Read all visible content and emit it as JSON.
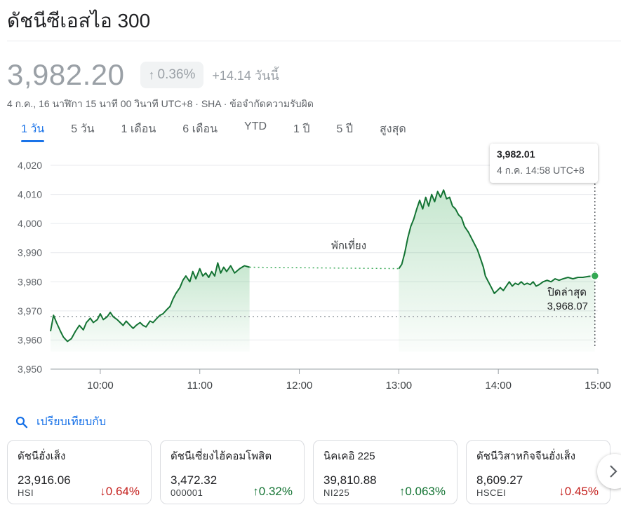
{
  "header": {
    "title": "ดัชนีซีเอสไอ 300"
  },
  "quote": {
    "price": "3,982.20",
    "pct_change": "0.36%",
    "abs_change": "+14.14 วันนี้",
    "meta": "4 ก.ค., 16 นาฬิกา 15 นาที 00 วินาที UTC+8 · SHA · ข้อจำกัดความรับผิด"
  },
  "tabs": [
    {
      "label": "1 วัน",
      "active": true
    },
    {
      "label": "5 วัน"
    },
    {
      "label": "1 เดือน"
    },
    {
      "label": "6 เดือน"
    },
    {
      "label": "YTD"
    },
    {
      "label": "1 ปี"
    },
    {
      "label": "5 ปี"
    },
    {
      "label": "สูงสุด"
    }
  ],
  "tooltip": {
    "value": "3,982.01",
    "time": "4 ก.ค. 14:58 UTC+8"
  },
  "chart_data": {
    "type": "line",
    "x_ticks": [
      "10:00",
      "11:00",
      "12:00",
      "13:00",
      "14:00",
      "15:00"
    ],
    "y_ticks": [
      "4,020",
      "4,010",
      "4,000",
      "3,990",
      "3,980",
      "3,970",
      "3,960",
      "3,950"
    ],
    "ylim": [
      3950,
      4020
    ],
    "xlim_hours": [
      9.5,
      15.0
    ],
    "previous_close": 3968.07,
    "previous_close_label": "ปิดล่าสุด",
    "previous_close_text": "3,968.07",
    "lunch_label": "พักเที่ยง",
    "lunch_break": [
      11.5,
      13.0
    ],
    "colors": {
      "line": "#137333",
      "fill": "#34a853"
    },
    "morning": [
      [
        9.5,
        3963
      ],
      [
        9.53,
        3968.5
      ],
      [
        9.56,
        3966
      ],
      [
        9.6,
        3963
      ],
      [
        9.63,
        3961
      ],
      [
        9.67,
        3959.5
      ],
      [
        9.71,
        3960.5
      ],
      [
        9.75,
        3963
      ],
      [
        9.79,
        3965
      ],
      [
        9.83,
        3963.5
      ],
      [
        9.86,
        3966
      ],
      [
        9.9,
        3967.5
      ],
      [
        9.93,
        3966
      ],
      [
        9.97,
        3967
      ],
      [
        10.0,
        3969
      ],
      [
        10.03,
        3967
      ],
      [
        10.07,
        3968
      ],
      [
        10.1,
        3969.5
      ],
      [
        10.13,
        3968
      ],
      [
        10.17,
        3967
      ],
      [
        10.2,
        3966
      ],
      [
        10.23,
        3965
      ],
      [
        10.26,
        3966.5
      ],
      [
        10.3,
        3965
      ],
      [
        10.33,
        3964
      ],
      [
        10.36,
        3965
      ],
      [
        10.4,
        3966
      ],
      [
        10.43,
        3965
      ],
      [
        10.46,
        3964.5
      ],
      [
        10.5,
        3966.5
      ],
      [
        10.53,
        3966
      ],
      [
        10.57,
        3967.5
      ],
      [
        10.6,
        3968.5
      ],
      [
        10.63,
        3969
      ],
      [
        10.67,
        3970.5
      ],
      [
        10.7,
        3971.5
      ],
      [
        10.73,
        3974
      ],
      [
        10.76,
        3976
      ],
      [
        10.8,
        3978
      ],
      [
        10.83,
        3980.5
      ],
      [
        10.86,
        3982
      ],
      [
        10.9,
        3980
      ],
      [
        10.93,
        3983.5
      ],
      [
        10.96,
        3981
      ],
      [
        11.0,
        3984.5
      ],
      [
        11.03,
        3982
      ],
      [
        11.06,
        3983
      ],
      [
        11.09,
        3981.5
      ],
      [
        11.12,
        3983.5
      ],
      [
        11.15,
        3982
      ],
      [
        11.18,
        3986.5
      ],
      [
        11.21,
        3983
      ],
      [
        11.24,
        3985
      ],
      [
        11.27,
        3983.5
      ],
      [
        11.31,
        3985.5
      ],
      [
        11.35,
        3983
      ],
      [
        11.4,
        3984.5
      ],
      [
        11.45,
        3985.5
      ],
      [
        11.5,
        3985
      ]
    ],
    "afternoon": [
      [
        13.0,
        3984.5
      ],
      [
        13.03,
        3986
      ],
      [
        13.06,
        3990
      ],
      [
        13.09,
        3995
      ],
      [
        13.12,
        3999
      ],
      [
        13.15,
        4001.5
      ],
      [
        13.18,
        4005
      ],
      [
        13.21,
        4008
      ],
      [
        13.24,
        4005
      ],
      [
        13.27,
        4009
      ],
      [
        13.3,
        4006
      ],
      [
        13.33,
        4010
      ],
      [
        13.36,
        4007.5
      ],
      [
        13.39,
        4011
      ],
      [
        13.42,
        4009
      ],
      [
        13.45,
        4011.5
      ],
      [
        13.48,
        4008.5
      ],
      [
        13.51,
        4009
      ],
      [
        13.54,
        4006
      ],
      [
        13.57,
        4005
      ],
      [
        13.6,
        4003
      ],
      [
        13.63,
        4002
      ],
      [
        13.66,
        3999
      ],
      [
        13.7,
        3997
      ],
      [
        13.73,
        3995
      ],
      [
        13.76,
        3993
      ],
      [
        13.79,
        3991
      ],
      [
        13.82,
        3988
      ],
      [
        13.85,
        3985
      ],
      [
        13.87,
        3982
      ],
      [
        13.9,
        3980
      ],
      [
        13.93,
        3978
      ],
      [
        13.96,
        3976
      ],
      [
        13.99,
        3977
      ],
      [
        14.02,
        3978
      ],
      [
        14.05,
        3977
      ],
      [
        14.08,
        3978.5
      ],
      [
        14.11,
        3980
      ],
      [
        14.14,
        3978.5
      ],
      [
        14.17,
        3979.5
      ],
      [
        14.2,
        3979
      ],
      [
        14.23,
        3980
      ],
      [
        14.26,
        3979
      ],
      [
        14.29,
        3979.5
      ],
      [
        14.32,
        3979
      ],
      [
        14.35,
        3980
      ],
      [
        14.38,
        3978.5
      ],
      [
        14.41,
        3979
      ],
      [
        14.45,
        3980
      ],
      [
        14.49,
        3980.5
      ],
      [
        14.53,
        3980
      ],
      [
        14.57,
        3981
      ],
      [
        14.61,
        3980.5
      ],
      [
        14.65,
        3981
      ],
      [
        14.7,
        3981.5
      ],
      [
        14.75,
        3981
      ],
      [
        14.8,
        3981.5
      ],
      [
        14.85,
        3981.5
      ],
      [
        14.9,
        3981.8
      ],
      [
        14.95,
        3982
      ],
      [
        14.97,
        3982.01
      ]
    ]
  },
  "compare": {
    "label": "เปรียบเทียบกับ"
  },
  "cards": [
    {
      "name": "ดัชนีฮั่งเส็ง",
      "value": "23,916.06",
      "symbol": "HSI",
      "change": "0.64%",
      "direction": "down"
    },
    {
      "name": "ดัชนีเซี่ยงไฮ้คอมโพสิต",
      "value": "3,472.32",
      "symbol": "000001",
      "change": "0.32%",
      "direction": "up"
    },
    {
      "name": "นิคเคอิ 225",
      "value": "39,810.88",
      "symbol": "NI225",
      "change": "0.063%",
      "direction": "up"
    },
    {
      "name": "ดัชนีวิสาหกิจจีนฮั่งเส็ง",
      "value": "8,609.27",
      "symbol": "HSCEI",
      "change": "0.45%",
      "direction": "down"
    }
  ]
}
